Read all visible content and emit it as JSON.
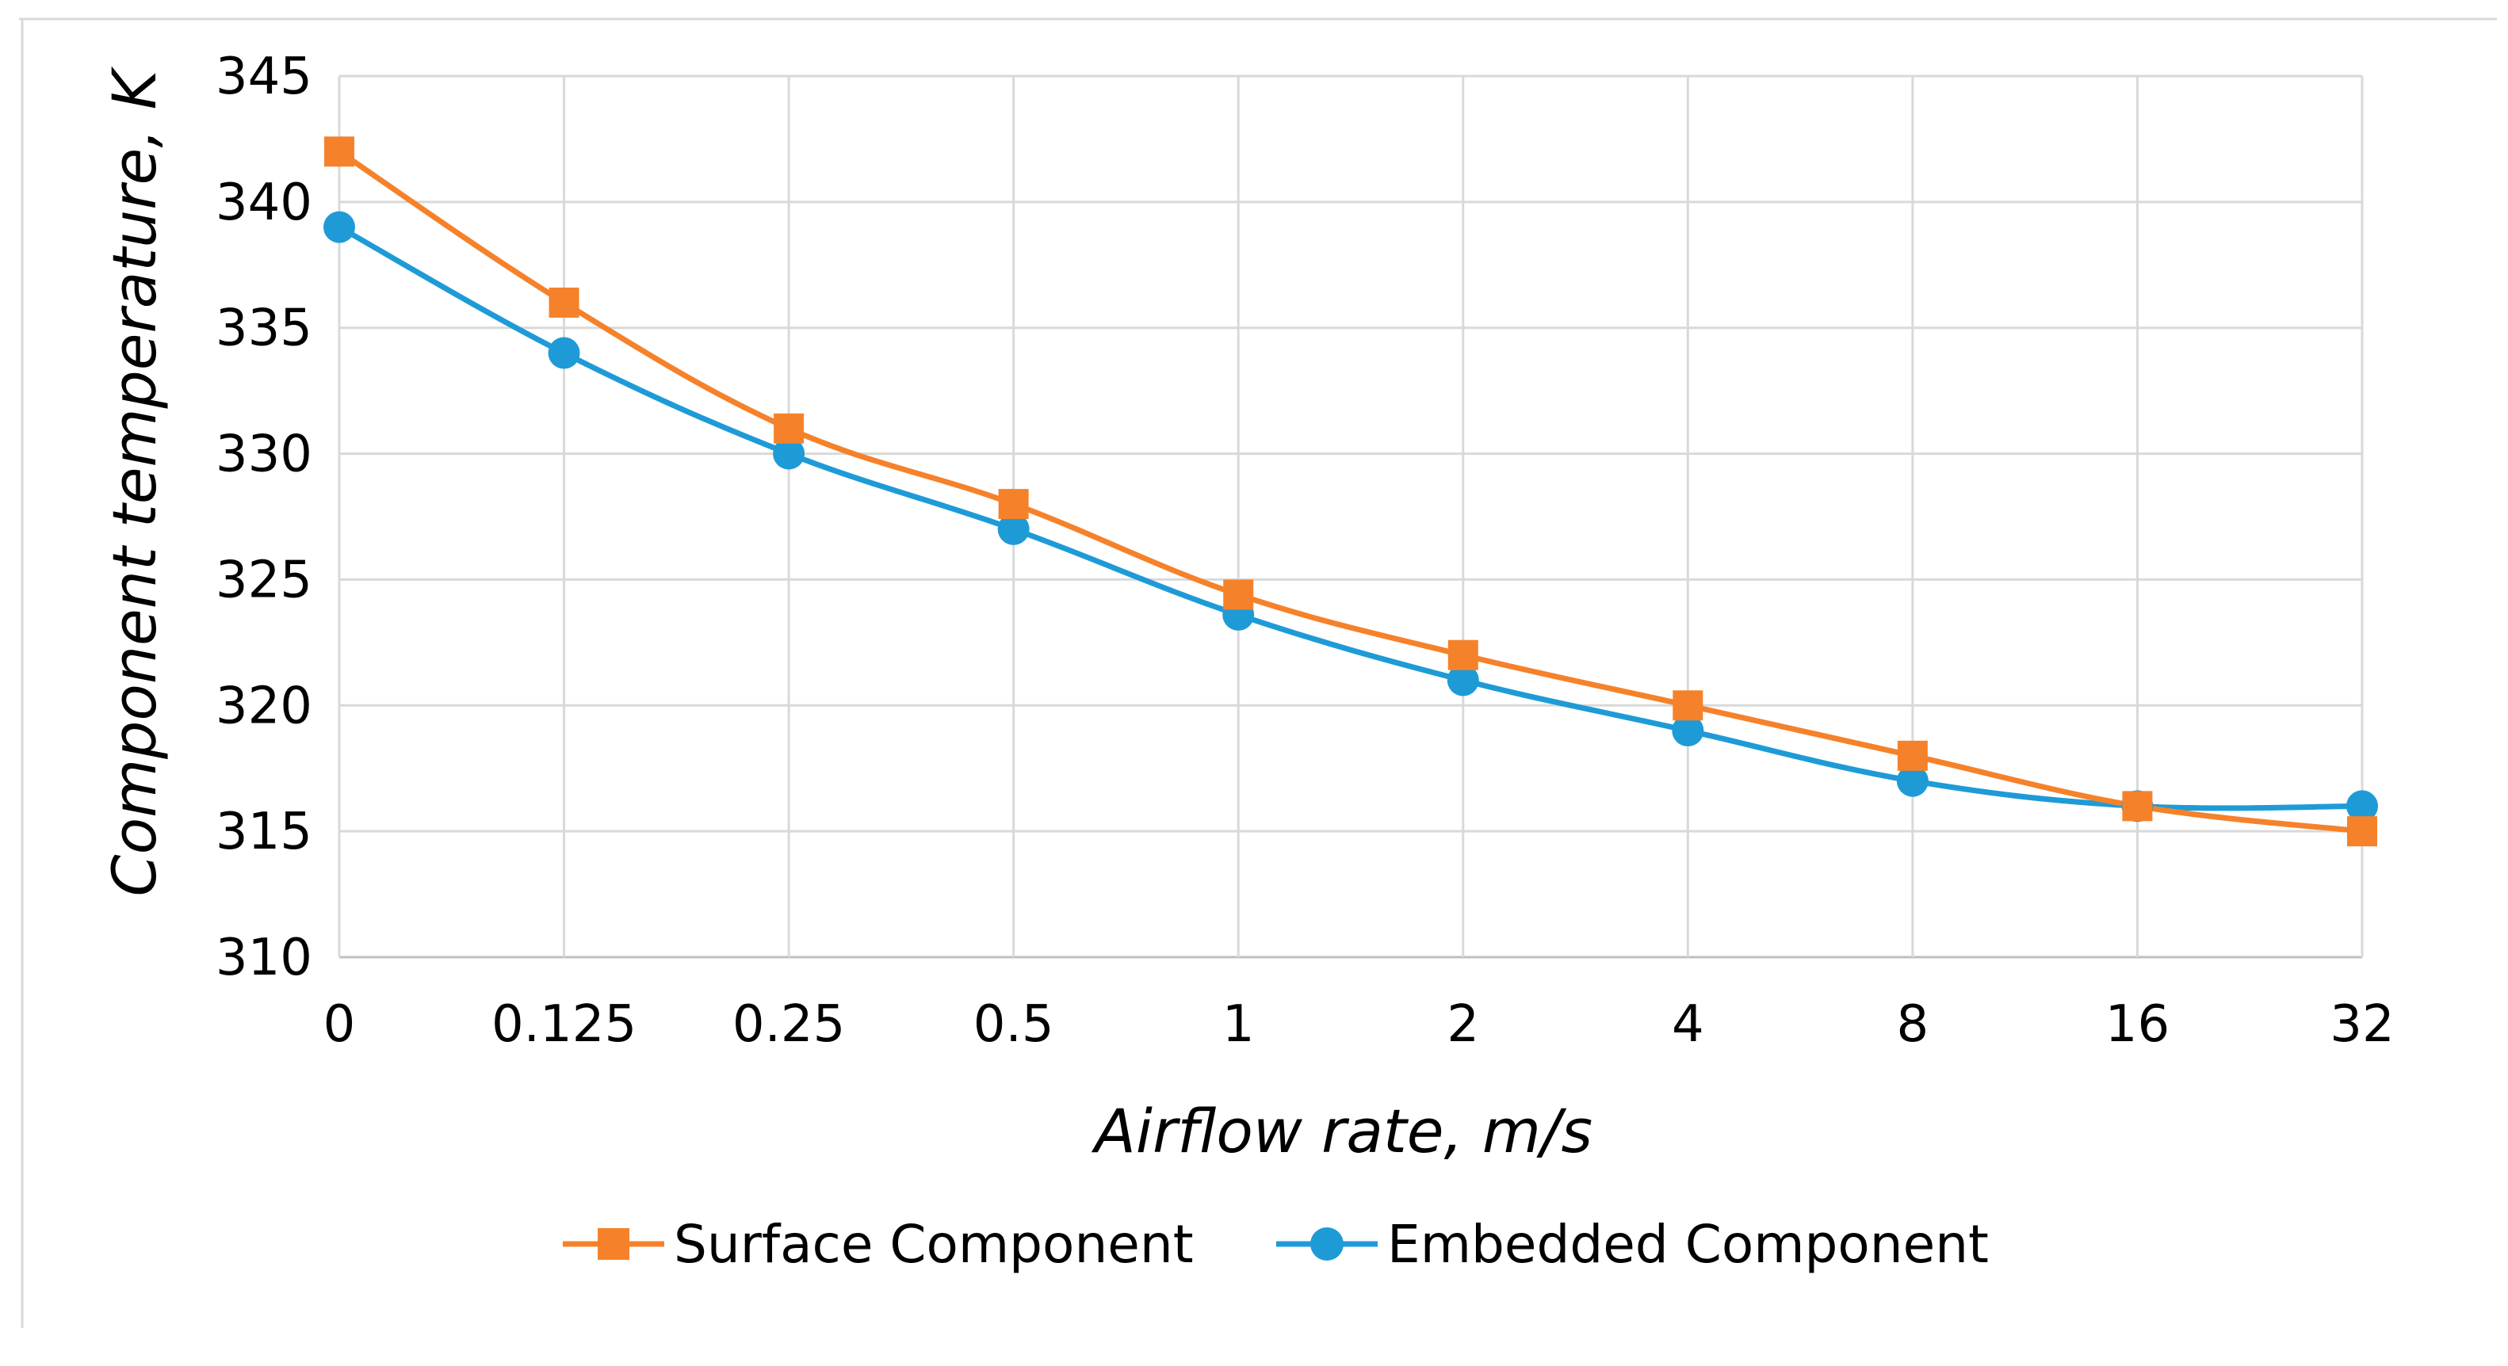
{
  "chart_data": {
    "type": "line",
    "title": "",
    "xlabel": "Airflow rate, m/s",
    "ylabel": "Component temperature, K",
    "categories": [
      "0",
      "0.125",
      "0.25",
      "0.5",
      "1",
      "2",
      "4",
      "8",
      "16",
      "32"
    ],
    "ylim": [
      310,
      345
    ],
    "yticks": [
      310,
      315,
      320,
      325,
      330,
      335,
      340,
      345
    ],
    "grid": true,
    "legend_position": "bottom",
    "series": [
      {
        "name": "Surface Component",
        "marker": "square",
        "color": "#F5822A",
        "values": [
          342,
          336,
          331,
          328,
          324.4,
          322,
          320,
          318,
          316,
          315
        ]
      },
      {
        "name": "Embedded Component",
        "marker": "circle",
        "color": "#1E9BD7",
        "values": [
          339,
          334,
          330,
          327,
          323.6,
          321,
          319,
          317,
          316,
          316
        ]
      }
    ]
  }
}
